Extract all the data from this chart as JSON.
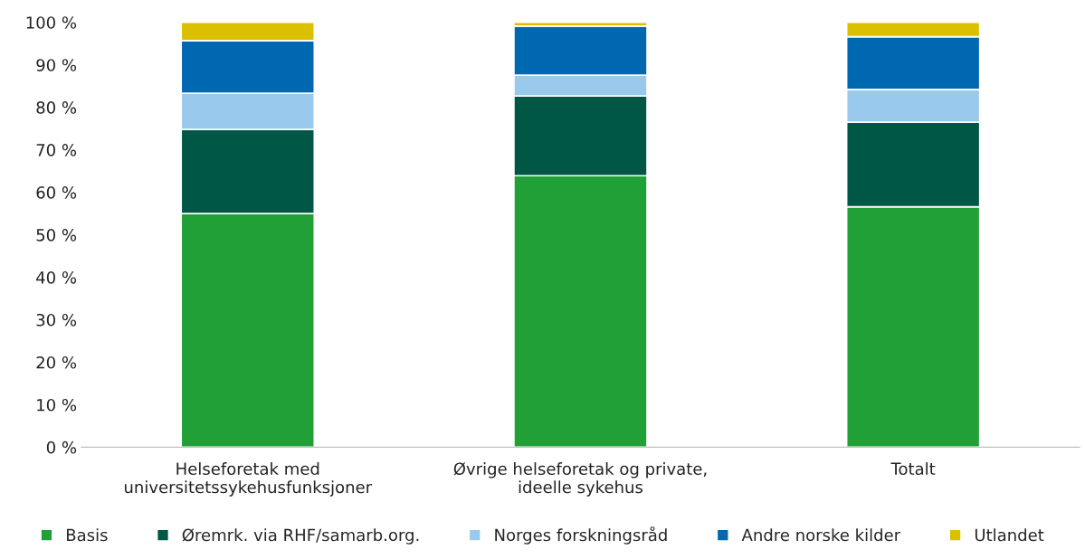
{
  "chart_data": {
    "type": "bar",
    "stacked": true,
    "categories": [
      "Helseforetak med\nuniversitetssykehusfunksjoner",
      "Øvrige helseforetak og private,\nideelle sykehus",
      "Totalt"
    ],
    "series": [
      {
        "name": "Basis",
        "color": "#21a038",
        "values": [
          55.0,
          63.9,
          56.6
        ]
      },
      {
        "name": "Øremrk. via RHF/samarb.org.",
        "color": "#005746",
        "values": [
          19.8,
          18.8,
          19.9
        ]
      },
      {
        "name": "Norges forskningsråd",
        "color": "#99c9ec",
        "values": [
          8.5,
          4.9,
          7.7
        ]
      },
      {
        "name": "Andre norske kilder",
        "color": "#0067b1",
        "values": [
          12.4,
          11.5,
          12.4
        ]
      },
      {
        "name": "Utlandet",
        "color": "#dbc000",
        "values": [
          4.3,
          0.9,
          3.4
        ]
      }
    ],
    "ylim": [
      0,
      100
    ],
    "yticks": [
      {
        "value": 0,
        "label": "0 %"
      },
      {
        "value": 10,
        "label": "10 %"
      },
      {
        "value": 20,
        "label": "20 %"
      },
      {
        "value": 30,
        "label": "30 %"
      },
      {
        "value": 40,
        "label": "40 %"
      },
      {
        "value": 50,
        "label": "50 %"
      },
      {
        "value": 60,
        "label": "60 %"
      },
      {
        "value": 70,
        "label": "70 %"
      },
      {
        "value": 80,
        "label": "80 %"
      },
      {
        "value": 90,
        "label": "90 %"
      },
      {
        "value": 100,
        "label": "100 %"
      }
    ],
    "grid": false,
    "legend": "bottom"
  }
}
